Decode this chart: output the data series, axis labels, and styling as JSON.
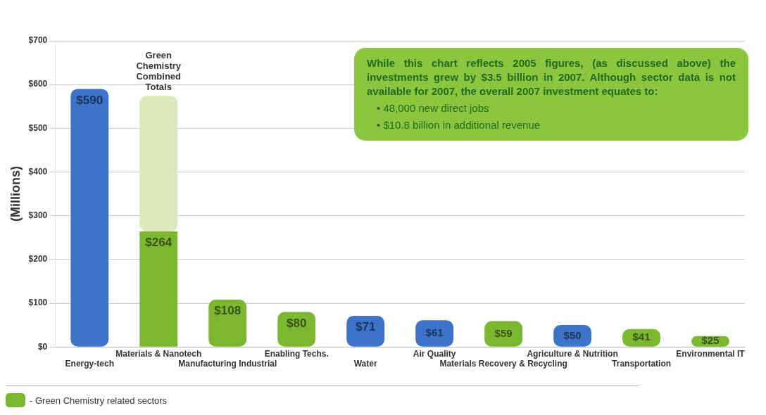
{
  "chart_data": {
    "type": "bar",
    "ylabel": "(Millions)",
    "stacked": true,
    "grid": "y",
    "categories": [
      "Energy-tech",
      "Materials & Nanotech",
      "Manufacturing Industrial",
      "Enabling Techs.",
      "Water",
      "Air Quality",
      "Materials Recovery & Recycling",
      "Agriculture & Nutrition",
      "Transportation",
      "Environmental IT"
    ],
    "series": [
      {
        "values": [
          590,
          264,
          108,
          80,
          71,
          61,
          59,
          50,
          41,
          25
        ],
        "colors": [
          "#3d73c9",
          "#7cb82f",
          "#7cb82f",
          "#7cb82f",
          "#3d73c9",
          "#3d73c9",
          "#7cb82f",
          "#3d73c9",
          "#7cb82f",
          "#7cb82f"
        ],
        "value_labels": [
          "$590",
          "$264",
          "$108",
          "$80",
          "$71",
          "$61",
          "$59",
          "$50",
          "$41",
          "$25"
        ]
      },
      {
        "name": "Green Chemistry Combined Totals",
        "color": "#dbeab8",
        "values": [
          null,
          310,
          null,
          null,
          null,
          null,
          null,
          null,
          null,
          null
        ]
      }
    ],
    "ylim": [
      0,
      700
    ],
    "yticks": [
      {
        "value": 0,
        "label": "$0"
      },
      {
        "value": 100,
        "label": "$100"
      },
      {
        "value": 200,
        "label": "$200"
      },
      {
        "value": 300,
        "label": "$300"
      },
      {
        "value": 400,
        "label": "$400"
      },
      {
        "value": 500,
        "label": "$500"
      },
      {
        "value": 600,
        "label": "$600"
      },
      {
        "value": 700,
        "label": "$700"
      }
    ],
    "annotations": [
      "While this chart reflects 2005 figures, (as discussed above) the investments grew by $3.5 billion in 2007. Although sector data is not available for 2007, the overall 2007 investment equates to:",
      "• 48,000 new direct jobs",
      "• $10.8 billion in additional revenue",
      "- Green Chemistry related sectors"
    ]
  }
}
